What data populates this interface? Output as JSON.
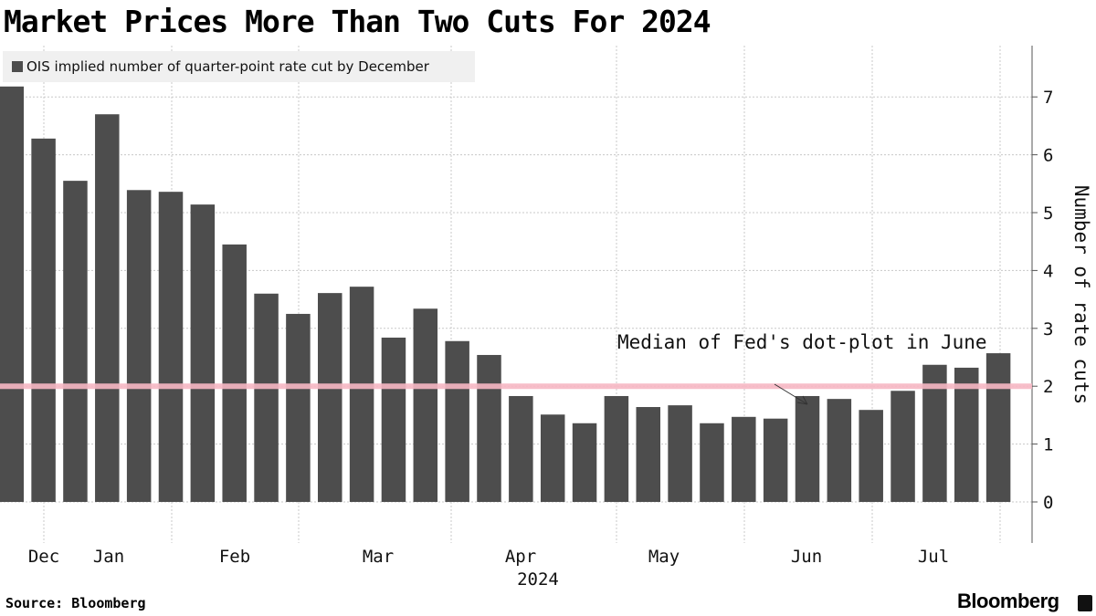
{
  "chart_data": {
    "type": "bar",
    "title": "Market Prices More Than Two Cuts For 2024",
    "ylabel": "Number of rate cuts",
    "ylim": [
      -0.7,
      7.8
    ],
    "yticks": [
      0,
      1,
      2,
      3,
      4,
      5,
      6,
      7
    ],
    "grid": true,
    "legend_placement": "top-left",
    "series": [
      {
        "name": "OIS implied number of quarter-point rate cut by December",
        "color": "#4d4d4d",
        "values": [
          7.18,
          6.28,
          5.55,
          6.7,
          5.39,
          5.36,
          5.14,
          4.45,
          3.6,
          3.25,
          3.61,
          3.72,
          2.84,
          3.34,
          2.78,
          2.54,
          1.83,
          1.51,
          1.36,
          1.83,
          1.64,
          1.67,
          1.36,
          1.47,
          1.44,
          1.83,
          1.78,
          1.59,
          1.92,
          2.37,
          2.32,
          2.57
        ]
      }
    ],
    "xtick_labels": [
      "Dec",
      "Jan",
      "Feb",
      "Mar",
      "Apr",
      "May",
      "Jun",
      "Jul"
    ],
    "xyear_label": "2024",
    "reference_line": {
      "value": 2,
      "color": "#f7b8c4",
      "annotation": "Median of Fed's dot-plot in June"
    }
  },
  "footer": {
    "source": "Source: Bloomberg",
    "brand": "Bloomberg"
  }
}
